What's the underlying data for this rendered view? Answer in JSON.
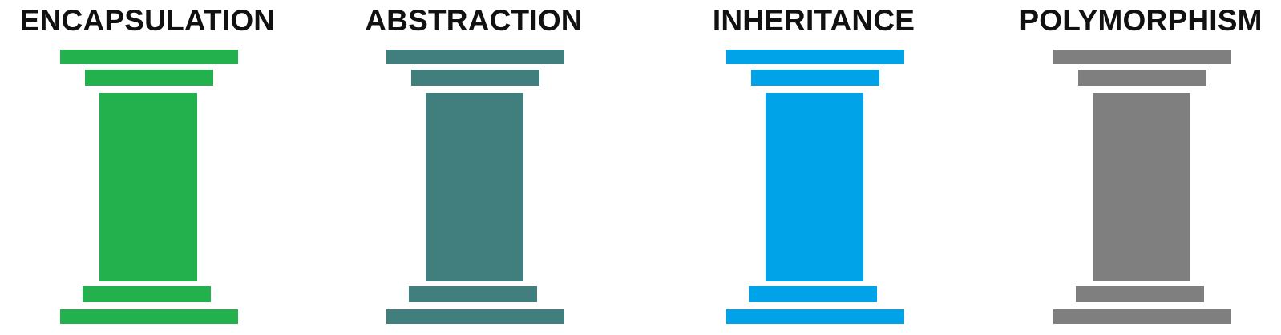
{
  "pillars": [
    {
      "title": "ENCAPSULATION",
      "color": "#22b14c"
    },
    {
      "title": "ABSTRACTION",
      "color": "#417e7e"
    },
    {
      "title": "INHERITANCE",
      "color": "#00a2e8"
    },
    {
      "title": "POLYMORPHISM",
      "color": "#7f7f7f"
    }
  ]
}
